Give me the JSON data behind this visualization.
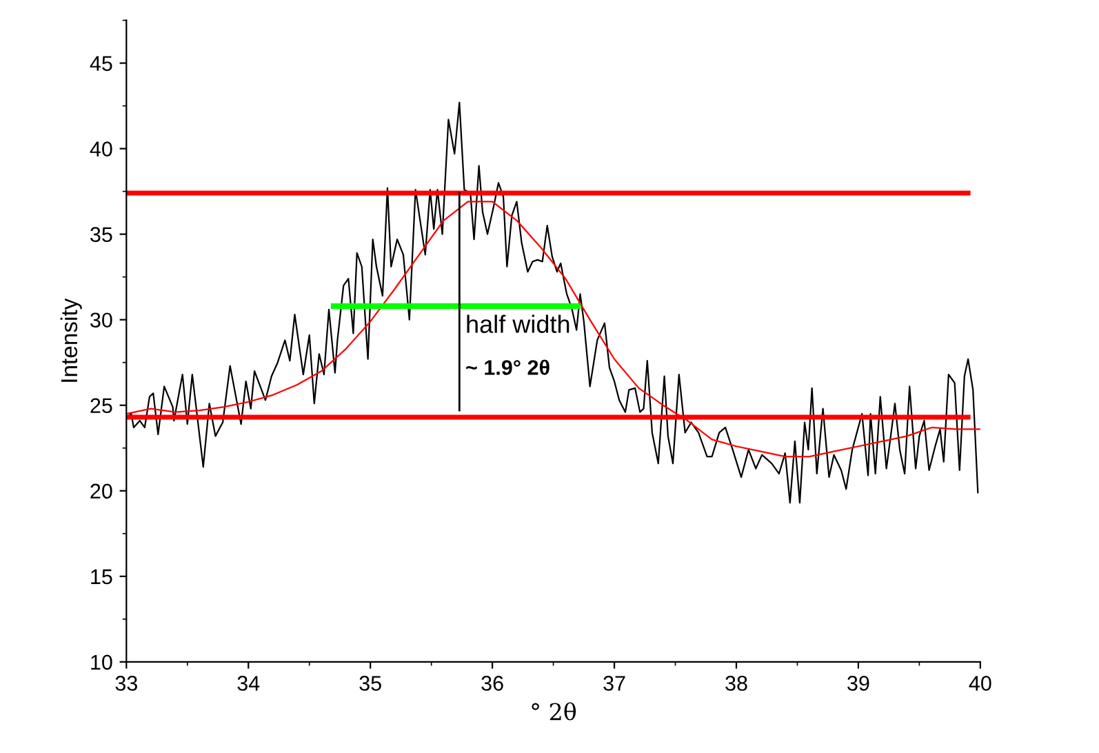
{
  "chart_data": {
    "type": "line",
    "xlabel": "° 2θ",
    "ylabel": "Intensity",
    "xlim": [
      33,
      40
    ],
    "ylim": [
      10,
      47.5
    ],
    "xticks": [
      33,
      34,
      35,
      36,
      37,
      38,
      39,
      40
    ],
    "yticks": [
      10,
      15,
      20,
      25,
      30,
      35,
      40,
      45
    ],
    "grid": false,
    "legend": false,
    "marker": "none",
    "series": [
      {
        "color": "#000000",
        "x": [
          33.0,
          33.04,
          33.06,
          33.11,
          33.15,
          33.19,
          33.22,
          33.26,
          33.31,
          33.38,
          33.39,
          33.46,
          33.5,
          33.54,
          33.63,
          33.68,
          33.73,
          33.79,
          33.85,
          33.94,
          33.98,
          34.02,
          34.05,
          34.14,
          34.19,
          34.24,
          34.3,
          34.34,
          34.38,
          34.45,
          34.5,
          34.54,
          34.58,
          34.62,
          34.66,
          34.71,
          34.73,
          34.78,
          34.82,
          34.86,
          34.89,
          34.93,
          34.98,
          35.02,
          35.05,
          35.1,
          35.14,
          35.17,
          35.22,
          35.27,
          35.32,
          35.37,
          35.45,
          35.49,
          35.52,
          35.55,
          35.59,
          35.64,
          35.69,
          35.73,
          35.77,
          35.82,
          35.85,
          35.89,
          35.92,
          35.96,
          36.01,
          36.05,
          36.09,
          36.12,
          36.16,
          36.2,
          36.24,
          36.29,
          36.33,
          36.37,
          36.41,
          36.45,
          36.49,
          36.53,
          36.56,
          36.61,
          36.65,
          36.69,
          36.72,
          36.75,
          36.8,
          36.86,
          36.92,
          36.96,
          37.0,
          37.04,
          37.09,
          37.12,
          37.17,
          37.21,
          37.24,
          37.27,
          37.31,
          37.36,
          37.41,
          37.44,
          37.48,
          37.53,
          37.58,
          37.63,
          37.69,
          37.76,
          37.8,
          37.86,
          37.91,
          37.97,
          38.04,
          38.1,
          38.16,
          38.21,
          38.29,
          38.35,
          38.4,
          38.44,
          38.48,
          38.52,
          38.56,
          38.59,
          38.62,
          38.66,
          38.71,
          38.76,
          38.8,
          38.86,
          38.9,
          38.95,
          39.03,
          39.08,
          39.1,
          39.14,
          39.18,
          39.23,
          39.26,
          39.3,
          39.34,
          39.38,
          39.42,
          39.47,
          39.5,
          39.54,
          39.58,
          39.63,
          39.67,
          39.7,
          39.74,
          39.79,
          39.83,
          39.87,
          39.9,
          39.94,
          39.98
        ],
        "values": [
          24.3,
          24.5,
          23.7,
          24.1,
          23.7,
          25.5,
          25.7,
          23.3,
          26.1,
          24.9,
          24.1,
          26.8,
          23.9,
          26.8,
          21.4,
          25.1,
          23.2,
          24.0,
          27.3,
          23.9,
          26.4,
          24.8,
          27.0,
          25.3,
          26.7,
          27.5,
          28.8,
          27.6,
          30.3,
          26.8,
          29.1,
          25.1,
          28.0,
          26.8,
          30.6,
          26.9,
          28.8,
          32.0,
          32.4,
          29.2,
          33.9,
          33.1,
          27.7,
          34.7,
          33.1,
          31.4,
          37.7,
          33.1,
          34.7,
          33.8,
          30.0,
          37.6,
          33.8,
          37.6,
          35.3,
          37.6,
          35.0,
          41.7,
          39.7,
          42.7,
          37.6,
          37.4,
          34.7,
          39.0,
          36.3,
          35.0,
          36.6,
          38.0,
          37.2,
          33.1,
          36.1,
          36.9,
          34.5,
          32.8,
          33.4,
          33.5,
          33.4,
          35.5,
          33.7,
          32.8,
          33.3,
          31.5,
          30.7,
          29.4,
          31.5,
          29.9,
          26.1,
          28.8,
          29.8,
          27.2,
          26.4,
          25.3,
          24.6,
          25.9,
          26.0,
          24.6,
          24.8,
          27.6,
          23.4,
          21.6,
          26.7,
          23.2,
          21.6,
          26.8,
          23.4,
          24.0,
          23.4,
          22.0,
          22.0,
          23.4,
          23.7,
          22.4,
          20.8,
          22.4,
          21.3,
          22.1,
          21.6,
          21.0,
          22.2,
          19.3,
          22.9,
          19.3,
          24.0,
          22.4,
          26.0,
          21.0,
          24.8,
          20.8,
          22.1,
          21.2,
          20.1,
          22.4,
          24.5,
          20.9,
          24.5,
          21.0,
          25.5,
          21.3,
          22.9,
          25.1,
          22.4,
          21.0,
          26.1,
          21.3,
          23.2,
          24.1,
          21.2,
          22.6,
          23.6,
          21.7,
          26.8,
          26.3,
          21.2,
          26.7,
          27.7,
          25.9,
          19.9
        ]
      },
      {
        "color": "#ff0000",
        "x": [
          33.0,
          33.2,
          33.4,
          33.6,
          33.8,
          34.0,
          34.2,
          34.4,
          34.6,
          34.8,
          35.0,
          35.2,
          35.4,
          35.6,
          35.8,
          36.0,
          36.2,
          36.4,
          36.6,
          36.8,
          37.0,
          37.2,
          37.4,
          37.6,
          37.8,
          38.0,
          38.2,
          38.4,
          38.6,
          38.8,
          39.0,
          39.2,
          39.4,
          39.6,
          39.8,
          40.0
        ],
        "values": [
          24.5,
          24.8,
          24.6,
          24.7,
          24.9,
          25.2,
          25.6,
          26.2,
          27.0,
          28.3,
          29.9,
          31.8,
          33.8,
          35.8,
          36.9,
          36.9,
          35.8,
          34.2,
          32.4,
          30.0,
          27.7,
          26.0,
          25.0,
          24.1,
          23.0,
          22.6,
          22.3,
          22.0,
          22.0,
          22.3,
          22.6,
          22.9,
          23.2,
          23.7,
          23.6,
          23.6
        ]
      },
      {
        "color": "#ff0000",
        "x": [
          33.0,
          39.9
        ],
        "values": [
          37.4,
          37.4
        ]
      },
      {
        "color": "#ff0000",
        "x": [
          33.0,
          39.9
        ],
        "values": [
          24.3,
          24.3
        ]
      },
      {
        "color": "#00ff00",
        "x": [
          34.7,
          36.7
        ],
        "values": [
          30.8,
          30.8
        ]
      },
      {
        "color": "#000000",
        "x": [
          35.73,
          35.73
        ],
        "values": [
          24.7,
          37.4
        ]
      }
    ],
    "annotations": [
      "half width",
      "~ 1.9° 2θ"
    ]
  }
}
